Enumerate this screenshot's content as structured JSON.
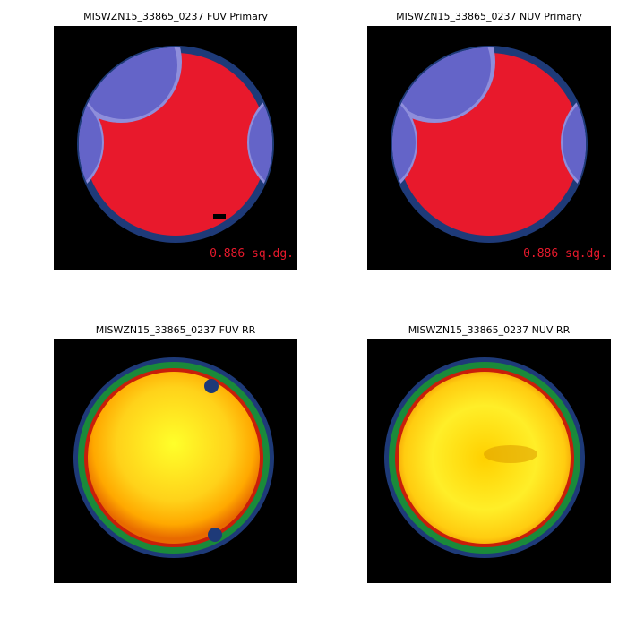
{
  "panels": [
    {
      "title": "MISWZN15_33865_0237 FUV Primary",
      "area": "0.886 sq.dg."
    },
    {
      "title": "MISWZN15_33865_0237 NUV Primary",
      "area": "0.886 sq.dg."
    },
    {
      "title": "MISWZN15_33865_0237 FUV RR"
    },
    {
      "title": "MISWZN15_33865_0237 NUV RR"
    }
  ],
  "colors": {
    "background": "#000000",
    "coverage_ring": "#1e3a78",
    "primary_region": "#e8192c",
    "overlap_light": "#8e8edb",
    "overlap_dark": "#6464c8",
    "rr_center": "#ffff2a",
    "rr_mid": "#ffc000",
    "rr_edge_red": "#c81e0a",
    "rr_edge_green": "#1a8a3a",
    "rr_edge_blue": "#1e3a78"
  }
}
